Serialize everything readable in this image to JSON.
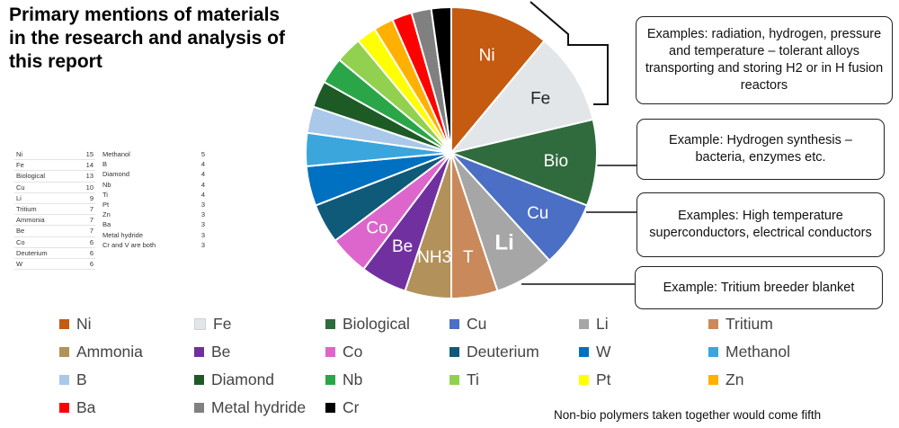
{
  "title": "Primary mentions of materials in the research and analysis of this report",
  "table": {
    "col1": [
      {
        "name": "Ni",
        "value": "15"
      },
      {
        "name": "Fe",
        "value": "14"
      },
      {
        "name": "Biological",
        "value": "13"
      },
      {
        "name": "Cu",
        "value": "10"
      },
      {
        "name": "Li",
        "value": "9"
      },
      {
        "name": "Tritium",
        "value": "7"
      },
      {
        "name": "Ammonia",
        "value": "7"
      },
      {
        "name": "Be",
        "value": "7"
      },
      {
        "name": "Co",
        "value": "6"
      },
      {
        "name": "Deuterium",
        "value": "6"
      },
      {
        "name": "W",
        "value": "6"
      }
    ],
    "col2": [
      {
        "name": "Methanol",
        "value": "5"
      },
      {
        "name": "B",
        "value": "4"
      },
      {
        "name": "Diamond",
        "value": "4"
      },
      {
        "name": "Nb",
        "value": "4"
      },
      {
        "name": "Ti",
        "value": "4"
      },
      {
        "name": "Pt",
        "value": "3"
      },
      {
        "name": "Zn",
        "value": "3"
      },
      {
        "name": "Ba",
        "value": "3"
      },
      {
        "name": "Metal hydride",
        "value": "3"
      },
      {
        "name": "Cr and V are both",
        "value": "3"
      }
    ]
  },
  "callouts": [
    "Examples: radiation, hydrogen, pressure and temperature – tolerant alloys transporting and storing H2 or in H fusion reactors",
    "Example: Hydrogen synthesis – bacteria, enzymes etc.",
    "Examples: High temperature superconductors, electrical conductors",
    "Example: Tritium breeder blanket"
  ],
  "footnote": "Non-bio polymers taken together would come fifth",
  "chart_data": {
    "type": "pie",
    "slices": [
      {
        "name": "Ni",
        "value": 15,
        "color": "#c55a11",
        "label": "Ni"
      },
      {
        "name": "Fe",
        "value": 14,
        "color": "#e3e6e8",
        "label": "Fe"
      },
      {
        "name": "Biological",
        "value": 13,
        "color": "#2f6b3c",
        "label": "Bio"
      },
      {
        "name": "Cu",
        "value": 10,
        "color": "#4a6fc4",
        "label": "Cu"
      },
      {
        "name": "Li",
        "value": 9,
        "color": "#a6a6a6",
        "label": "Li"
      },
      {
        "name": "Tritium",
        "value": 7,
        "color": "#c9895a",
        "label": "T"
      },
      {
        "name": "Ammonia",
        "value": 7,
        "color": "#b3915a",
        "label": "NH3"
      },
      {
        "name": "Be",
        "value": 7,
        "color": "#7030a0",
        "label": "Be"
      },
      {
        "name": "Co",
        "value": 6,
        "color": "#dd66cc",
        "label": "Co"
      },
      {
        "name": "Deuterium",
        "value": 6,
        "color": "#0f5a78",
        "label": ""
      },
      {
        "name": "W",
        "value": 6,
        "color": "#0070c0",
        "label": ""
      },
      {
        "name": "Methanol",
        "value": 5,
        "color": "#3aa6dc",
        "label": ""
      },
      {
        "name": "B",
        "value": 4,
        "color": "#a9c8ea",
        "label": ""
      },
      {
        "name": "Diamond",
        "value": 4,
        "color": "#1e5a26",
        "label": ""
      },
      {
        "name": "Nb",
        "value": 4,
        "color": "#2aa648",
        "label": ""
      },
      {
        "name": "Ti",
        "value": 4,
        "color": "#92d050",
        "label": ""
      },
      {
        "name": "Pt",
        "value": 3,
        "color": "#ffff00",
        "label": ""
      },
      {
        "name": "Zn",
        "value": 3,
        "color": "#ffb000",
        "label": ""
      },
      {
        "name": "Ba",
        "value": 3,
        "color": "#ff0000",
        "label": ""
      },
      {
        "name": "Metal hydride",
        "value": 3,
        "color": "#808080",
        "label": ""
      },
      {
        "name": "Cr",
        "value": 3,
        "color": "#000000",
        "label": ""
      }
    ],
    "legend": [
      {
        "name": "Ni",
        "color": "#c55a11"
      },
      {
        "name": "Fe",
        "color": "#e3e6e8"
      },
      {
        "name": "Biological",
        "color": "#2f6b3c"
      },
      {
        "name": "Cu",
        "color": "#4a6fc4"
      },
      {
        "name": "Li",
        "color": "#a6a6a6"
      },
      {
        "name": "Tritium",
        "color": "#c9895a"
      },
      {
        "name": "Ammonia",
        "color": "#b3915a"
      },
      {
        "name": "Be",
        "color": "#7030a0"
      },
      {
        "name": "Co",
        "color": "#dd66cc"
      },
      {
        "name": "Deuterium",
        "color": "#0f5a78"
      },
      {
        "name": "W",
        "color": "#0070c0"
      },
      {
        "name": "Methanol",
        "color": "#3aa6dc"
      },
      {
        "name": "B",
        "color": "#a9c8ea"
      },
      {
        "name": "Diamond",
        "color": "#1e5a26"
      },
      {
        "name": "Nb",
        "color": "#2aa648"
      },
      {
        "name": "Ti",
        "color": "#92d050"
      },
      {
        "name": "Pt",
        "color": "#ffff00"
      },
      {
        "name": "Zn",
        "color": "#ffb000"
      },
      {
        "name": "Ba",
        "color": "#ff0000"
      },
      {
        "name": "Metal hydride",
        "color": "#808080"
      },
      {
        "name": "Cr",
        "color": "#000000"
      }
    ],
    "legend_position": "bottom"
  }
}
